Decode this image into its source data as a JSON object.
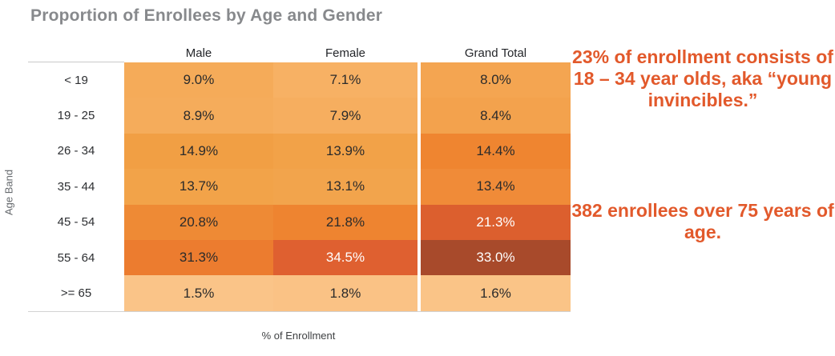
{
  "title": "Proportion of Enrollees by Age and Gender",
  "ylabel": "Age Band",
  "xlabel": "% of Enrollment",
  "columns": [
    "Male",
    "Female",
    "Grand Total"
  ],
  "rows": [
    {
      "band": "< 19",
      "cells": [
        {
          "value": "9.0%",
          "bg": "#F5AB59",
          "fg": "#2B2B2B"
        },
        {
          "value": "7.1%",
          "bg": "#F7B164",
          "fg": "#2B2B2B"
        },
        {
          "value": "8.0%",
          "bg": "#F4A551",
          "fg": "#2B2B2B"
        }
      ]
    },
    {
      "band": "19 - 25",
      "cells": [
        {
          "value": "8.9%",
          "bg": "#F5AC5B",
          "fg": "#2B2B2B"
        },
        {
          "value": "7.9%",
          "bg": "#F6AE5F",
          "fg": "#2B2B2B"
        },
        {
          "value": "8.4%",
          "bg": "#F3A24D",
          "fg": "#2B2B2B"
        }
      ]
    },
    {
      "band": "26 - 34",
      "cells": [
        {
          "value": "14.9%",
          "bg": "#F19F44",
          "fg": "#2B2B2B"
        },
        {
          "value": "13.9%",
          "bg": "#F2A248",
          "fg": "#2B2B2B"
        },
        {
          "value": "14.4%",
          "bg": "#EF8530",
          "fg": "#2B2B2B"
        }
      ]
    },
    {
      "band": "35 - 44",
      "cells": [
        {
          "value": "13.7%",
          "bg": "#F2A349",
          "fg": "#2B2B2B"
        },
        {
          "value": "13.1%",
          "bg": "#F2A44C",
          "fg": "#2B2B2B"
        },
        {
          "value": "13.4%",
          "bg": "#F08B38",
          "fg": "#2B2B2B"
        }
      ]
    },
    {
      "band": "45 - 54",
      "cells": [
        {
          "value": "20.8%",
          "bg": "#EE8A35",
          "fg": "#2B2B2B"
        },
        {
          "value": "21.8%",
          "bg": "#EE8430",
          "fg": "#2B2B2B"
        },
        {
          "value": "21.3%",
          "bg": "#DC5F2E",
          "fg": "#FFFFFF"
        }
      ]
    },
    {
      "band": "55 - 64",
      "cells": [
        {
          "value": "31.3%",
          "bg": "#EC7C2F",
          "fg": "#2B2B2B"
        },
        {
          "value": "34.5%",
          "bg": "#DF6030",
          "fg": "#FFFFFF"
        },
        {
          "value": "33.0%",
          "bg": "#A84A2B",
          "fg": "#FFFFFF"
        }
      ]
    },
    {
      "band": ">= 65",
      "cells": [
        {
          "value": "1.5%",
          "bg": "#FAC488",
          "fg": "#2B2B2B"
        },
        {
          "value": "1.8%",
          "bg": "#FAC285",
          "fg": "#2B2B2B"
        },
        {
          "value": "1.6%",
          "bg": "#FAC487",
          "fg": "#2B2B2B"
        }
      ]
    }
  ],
  "annotations": [
    {
      "text": "23% of enrollment consists of 18 – 34 year olds, aka “young invincibles.”"
    },
    {
      "text": "382 enrollees over 75 years of age."
    }
  ],
  "colors": {
    "annotation_text": "#E2592B",
    "title_text": "#87898C",
    "heat_low": "#FAC488",
    "heat_high": "#A84A2B",
    "header_rule": "#C9C9C9"
  },
  "chart_data": {
    "type": "heatmap",
    "title": "Proportion of Enrollees by Age and Gender",
    "xlabel": "% of Enrollment",
    "ylabel": "Age Band",
    "columns": [
      "Male",
      "Female",
      "Grand Total"
    ],
    "rows": [
      "< 19",
      "19 - 25",
      "26 - 34",
      "35 - 44",
      "45 - 54",
      "55 - 64",
      ">= 65"
    ],
    "values_pct": [
      [
        9.0,
        7.1,
        8.0
      ],
      [
        8.9,
        7.9,
        8.4
      ],
      [
        14.9,
        13.9,
        14.4
      ],
      [
        13.7,
        13.1,
        13.4
      ],
      [
        20.8,
        21.8,
        21.3
      ],
      [
        31.3,
        34.5,
        33.0
      ],
      [
        1.5,
        1.8,
        1.6
      ]
    ],
    "legend": "none",
    "color_scale": "light orange (low) to dark brown-red (high)"
  }
}
